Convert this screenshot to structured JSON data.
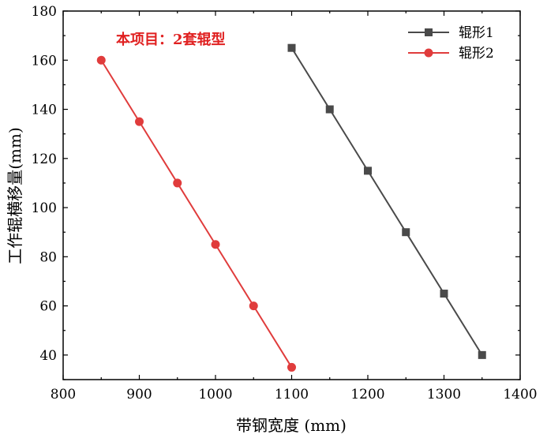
{
  "chart_data": {
    "type": "line",
    "xlabel": "带钢宽度 (mm)",
    "ylabel": "工作辊横移量(mm)",
    "xlim": [
      800,
      1400
    ],
    "ylim": [
      30,
      180
    ],
    "x_ticks": [
      800,
      900,
      1000,
      1100,
      1200,
      1300,
      1400
    ],
    "y_ticks": [
      40,
      60,
      80,
      100,
      120,
      140,
      160,
      180
    ],
    "grid": false,
    "legend_position": "top-right",
    "annotation": {
      "text": "本项目：2套辊型",
      "color": "#e02020"
    },
    "series": [
      {
        "name": "辊形1",
        "color": "#4a4a4a",
        "marker": "square",
        "x": [
          1100,
          1150,
          1200,
          1250,
          1300,
          1350
        ],
        "y": [
          165,
          140,
          115,
          90,
          65,
          40
        ]
      },
      {
        "name": "辊形2",
        "color": "#e03c3c",
        "marker": "circle",
        "x": [
          850,
          900,
          950,
          1000,
          1050,
          1100
        ],
        "y": [
          160,
          135,
          110,
          85,
          60,
          35
        ]
      }
    ]
  }
}
